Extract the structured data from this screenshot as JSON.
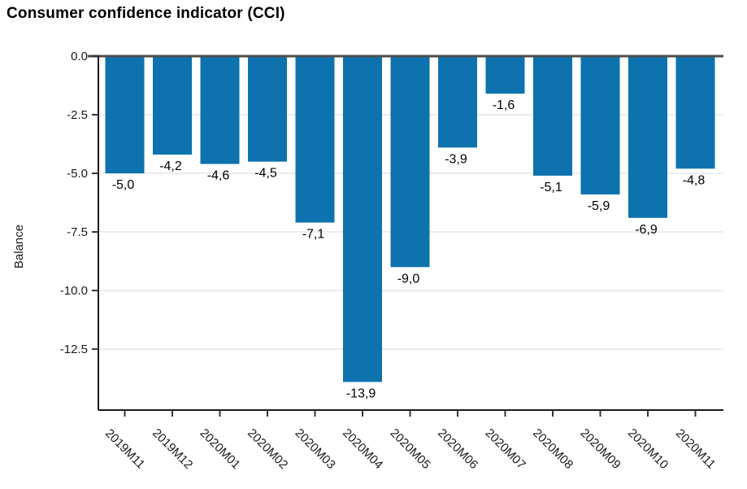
{
  "page": {
    "title": "Consumer confidence indicator (CCI)"
  },
  "chart_data": {
    "type": "bar",
    "title": "Consumer confidence indicator (CCI)",
    "xlabel": "",
    "ylabel": "Balance",
    "categories": [
      "2019M11",
      "2019M12",
      "2020M01",
      "2020M02",
      "2020M03",
      "2020M04",
      "2020M05",
      "2020M06",
      "2020M07",
      "2020M08",
      "2020M09",
      "2020M10",
      "2020M11"
    ],
    "values": [
      -5.0,
      -4.2,
      -4.6,
      -4.5,
      -7.1,
      -13.9,
      -9.0,
      -3.9,
      -1.6,
      -5.1,
      -5.9,
      -6.9,
      -4.8
    ],
    "value_labels": [
      "-5,0",
      "-4,2",
      "-4,6",
      "-4,5",
      "-7,1",
      "-13,9",
      "-9,0",
      "-3,9",
      "-1,6",
      "-5,1",
      "-5,9",
      "-6,9",
      "-4,8"
    ],
    "yticks": [
      0.0,
      -2.5,
      -5.0,
      -7.5,
      -10.0,
      -12.5
    ],
    "ytick_labels": [
      "0.0",
      "-2.5",
      "-5.0",
      "-7.5",
      "-10.0",
      "-12.5"
    ],
    "ylim": [
      -15.1,
      0
    ],
    "grid": true,
    "legend_position": "none",
    "colors": {
      "bar": "#0d72ae",
      "zero_line": "#4d4d4d",
      "grid_line": "#d9d9d9",
      "axis_line": "#1a1a1a",
      "tick_mark": "#333333",
      "label_text": "#000000",
      "tick_text": "#1a1a1a",
      "background": "#ffffff"
    }
  }
}
